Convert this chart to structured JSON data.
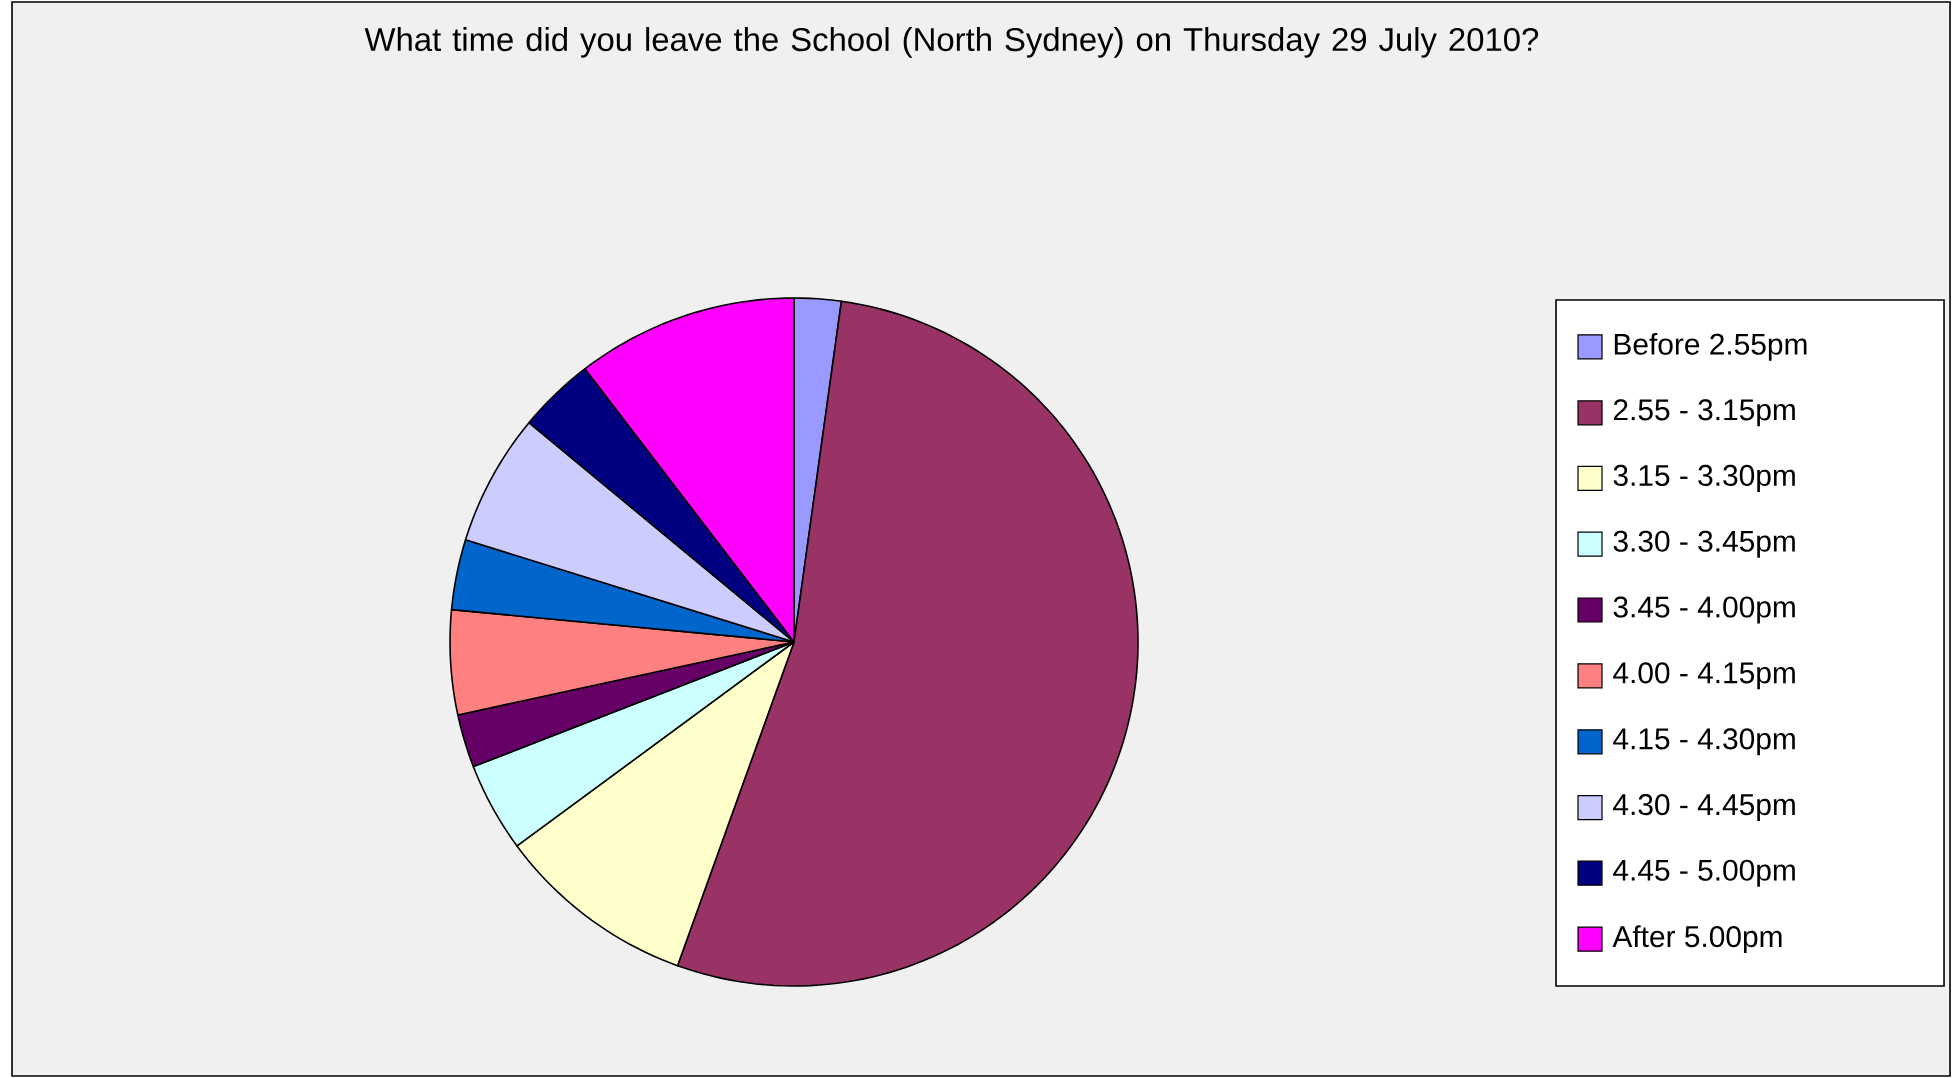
{
  "chart_data": {
    "type": "pie",
    "title": "What time did you leave the School (North Sydney) on Thursday 29 July 2010?",
    "categories": [
      "Before 2.55pm",
      "2.55 - 3.15pm",
      "3.15 - 3.30pm",
      "3.30 - 3.45pm",
      "3.45 - 4.00pm",
      "4.00 - 4.15pm",
      "4.15 - 4.30pm",
      "4.30 - 4.45pm",
      "4.45 - 5.00pm",
      "After 5.00pm"
    ],
    "values": [
      2.2,
      53.3,
      9.4,
      4.2,
      2.5,
      4.9,
      3.3,
      6.2,
      3.6,
      10.4
    ],
    "colors": [
      "#9999ff",
      "#993366",
      "#ffffcc",
      "#ccffff",
      "#660066",
      "#ff8080",
      "#0066cc",
      "#ccccff",
      "#000080",
      "#ff00ff"
    ],
    "legend": "right"
  }
}
